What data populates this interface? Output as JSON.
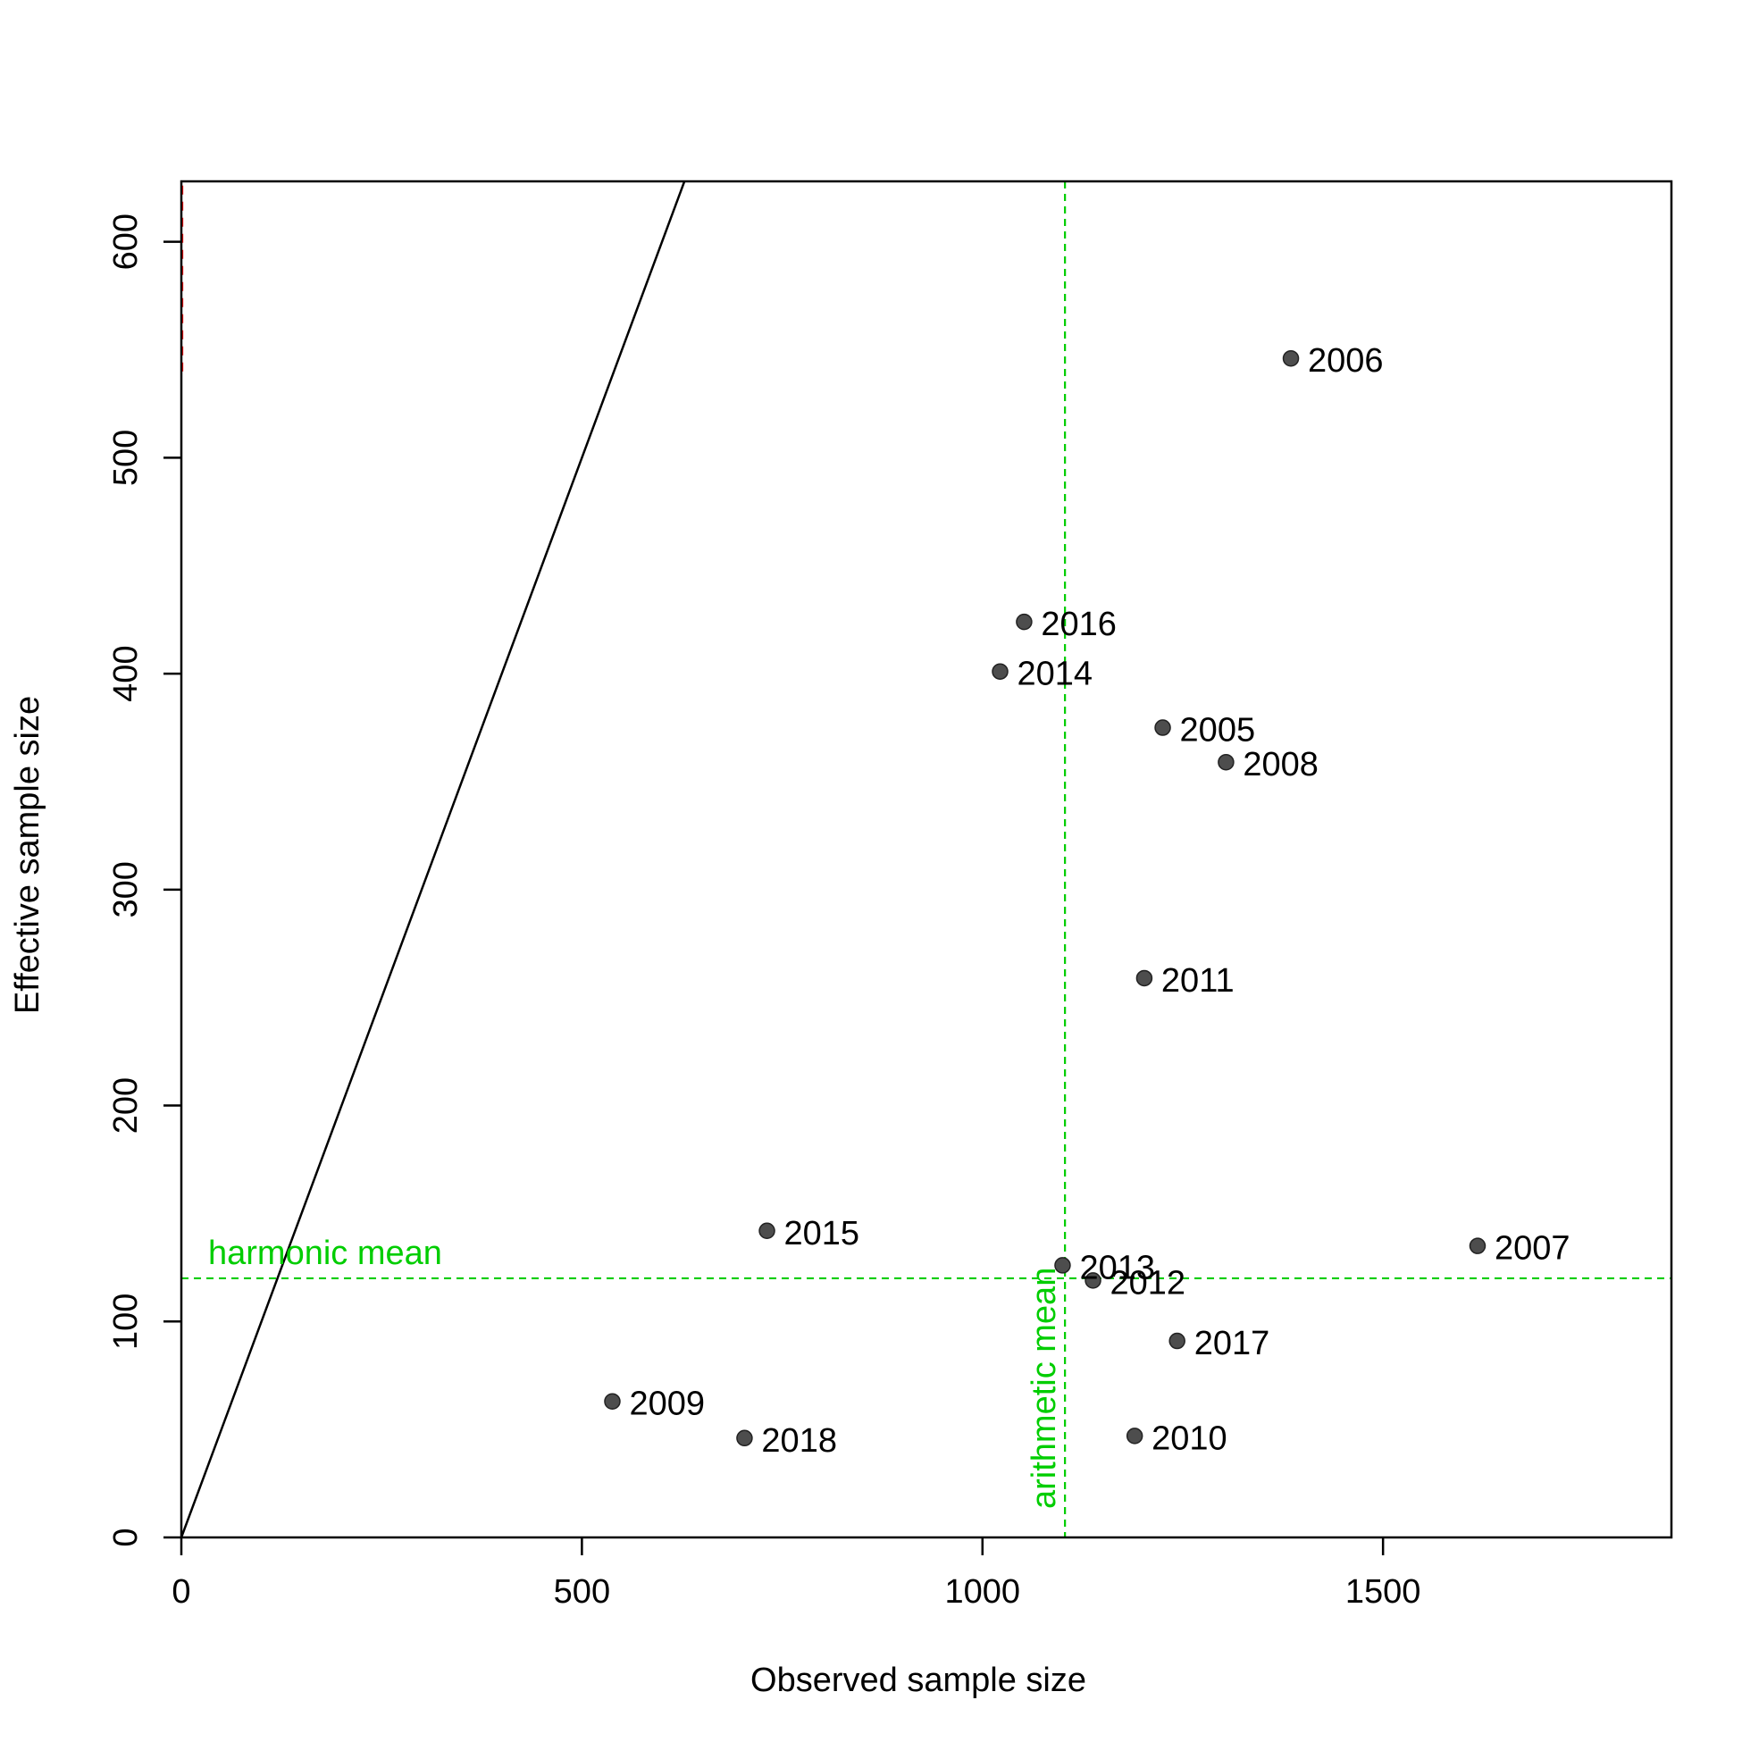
{
  "chart_data": {
    "type": "scatter",
    "title": "",
    "xlabel": "Observed sample size",
    "ylabel": "Effective sample size",
    "xlim": [
      0,
      1860
    ],
    "ylim": [
      0,
      628
    ],
    "xticks": [
      0,
      500,
      1000,
      1500
    ],
    "yticks": [
      0,
      100,
      200,
      300,
      400,
      500,
      600
    ],
    "xtick_labels": [
      "0",
      "500",
      "1000",
      "1500"
    ],
    "ytick_labels": [
      "0",
      "100",
      "200",
      "300",
      "400",
      "500",
      "600"
    ],
    "grid": false,
    "points": [
      {
        "label": "2005",
        "x": 1225,
        "y": 375
      },
      {
        "label": "2006",
        "x": 1385,
        "y": 546
      },
      {
        "label": "2007",
        "x": 1618,
        "y": 135
      },
      {
        "label": "2008",
        "x": 1304,
        "y": 359
      },
      {
        "label": "2009",
        "x": 538,
        "y": 63
      },
      {
        "label": "2010",
        "x": 1190,
        "y": 47
      },
      {
        "label": "2011",
        "x": 1202,
        "y": 259
      },
      {
        "label": "2012",
        "x": 1138,
        "y": 119
      },
      {
        "label": "2013",
        "x": 1100,
        "y": 126
      },
      {
        "label": "2014",
        "x": 1022,
        "y": 401
      },
      {
        "label": "2015",
        "x": 731,
        "y": 142
      },
      {
        "label": "2016",
        "x": 1052,
        "y": 424
      },
      {
        "label": "2017",
        "x": 1243,
        "y": 91
      },
      {
        "label": "2018",
        "x": 703,
        "y": 46
      }
    ],
    "reference_lines": {
      "identity": {
        "slope": 1,
        "intercept": 0,
        "color": "#000000"
      },
      "harmonic_mean": {
        "label": "harmonic mean",
        "y": 120,
        "color": "#00cd00"
      },
      "arithmetic_mean": {
        "label": "arithmetic mean",
        "x": 1103,
        "color": "#00cd00"
      },
      "red_segment": {
        "x": 1,
        "y_range": [
          540,
          628
        ],
        "color": "#ff0000"
      }
    },
    "point_color": "#4d4d4d"
  }
}
